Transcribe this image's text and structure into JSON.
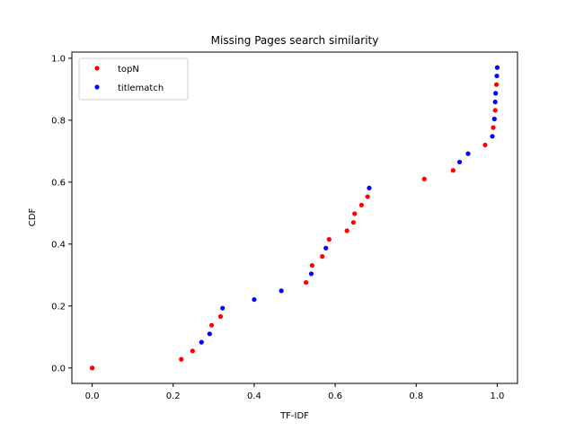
{
  "chart_data": {
    "type": "scatter",
    "title": "Missing Pages search similarity",
    "xlabel": "TF-IDF",
    "ylabel": "CDF",
    "xlim": [
      -0.05,
      1.05
    ],
    "ylim": [
      -0.05,
      1.02
    ],
    "xticks": [
      "0.0",
      "0.2",
      "0.4",
      "0.6",
      "0.8",
      "1.0"
    ],
    "yticks": [
      "0.0",
      "0.2",
      "0.4",
      "0.6",
      "0.8",
      "1.0"
    ],
    "grid": false,
    "legend_position": "top-left",
    "series": [
      {
        "name": "topN",
        "color": "#ff0000",
        "points": [
          [
            0.0,
            0.0
          ],
          [
            0.22,
            0.028
          ],
          [
            0.248,
            0.055
          ],
          [
            0.295,
            0.138
          ],
          [
            0.317,
            0.166
          ],
          [
            0.528,
            0.276
          ],
          [
            0.543,
            0.331
          ],
          [
            0.568,
            0.36
          ],
          [
            0.585,
            0.415
          ],
          [
            0.629,
            0.443
          ],
          [
            0.645,
            0.47
          ],
          [
            0.648,
            0.498
          ],
          [
            0.665,
            0.526
          ],
          [
            0.68,
            0.553
          ],
          [
            0.82,
            0.61
          ],
          [
            0.891,
            0.638
          ],
          [
            0.97,
            0.72
          ],
          [
            0.99,
            0.776
          ],
          [
            0.995,
            0.832
          ],
          [
            0.998,
            0.915
          ]
        ]
      },
      {
        "name": "titlematch",
        "color": "#0000ff",
        "points": [
          [
            0.27,
            0.083
          ],
          [
            0.29,
            0.11
          ],
          [
            0.322,
            0.193
          ],
          [
            0.4,
            0.221
          ],
          [
            0.467,
            0.249
          ],
          [
            0.541,
            0.304
          ],
          [
            0.577,
            0.387
          ],
          [
            0.684,
            0.581
          ],
          [
            0.907,
            0.665
          ],
          [
            0.928,
            0.692
          ],
          [
            0.988,
            0.748
          ],
          [
            0.993,
            0.804
          ],
          [
            0.995,
            0.859
          ],
          [
            0.996,
            0.887
          ],
          [
            0.999,
            0.943
          ],
          [
            1.0,
            0.97
          ]
        ]
      }
    ]
  }
}
